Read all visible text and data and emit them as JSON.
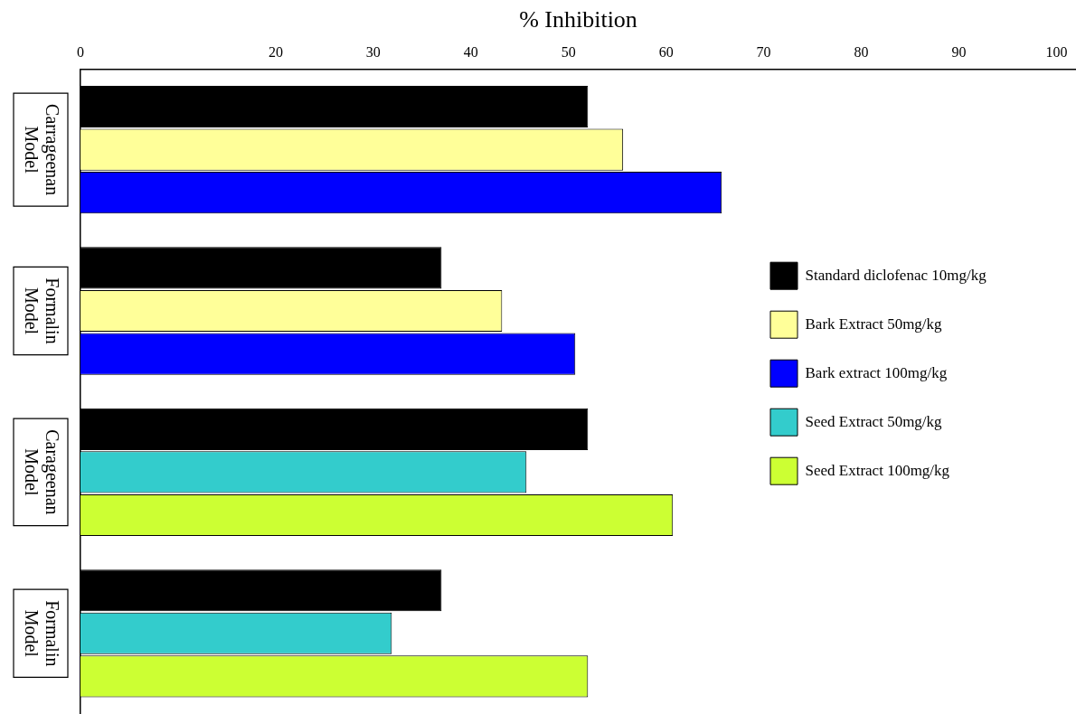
{
  "chart_data": {
    "type": "bar",
    "orientation": "horizontal",
    "xlabel": "% Inhibition",
    "categories": [
      "Carrageenan Model",
      "Formalin Model",
      "Carageenan Model",
      "Formalin Model"
    ],
    "xlim": [
      0,
      102
    ],
    "xticks": [
      0,
      20,
      30,
      40,
      50,
      60,
      70,
      80,
      90,
      100
    ],
    "grid": false,
    "legend": "right",
    "series": [
      {
        "name": "Standard diclofenac 10mg/kg",
        "color": "#000000",
        "values": [
          52,
          37,
          52,
          37
        ]
      },
      {
        "name": "Bark Extract 50mg/kg",
        "color": "#ffff99",
        "values": [
          55.6,
          43.2,
          null,
          null
        ]
      },
      {
        "name": "Bark extract 100mg/kg",
        "color": "#0000ff",
        "values": [
          65.7,
          50.7,
          null,
          null
        ]
      },
      {
        "name": "Seed Extract 50mg/kg",
        "color": "#33cccc",
        "values": [
          null,
          null,
          45.7,
          31.9
        ]
      },
      {
        "name": "Seed Extract 100mg/kg",
        "color": "#ccff33",
        "values": [
          null,
          null,
          60.7,
          52
        ]
      }
    ]
  }
}
